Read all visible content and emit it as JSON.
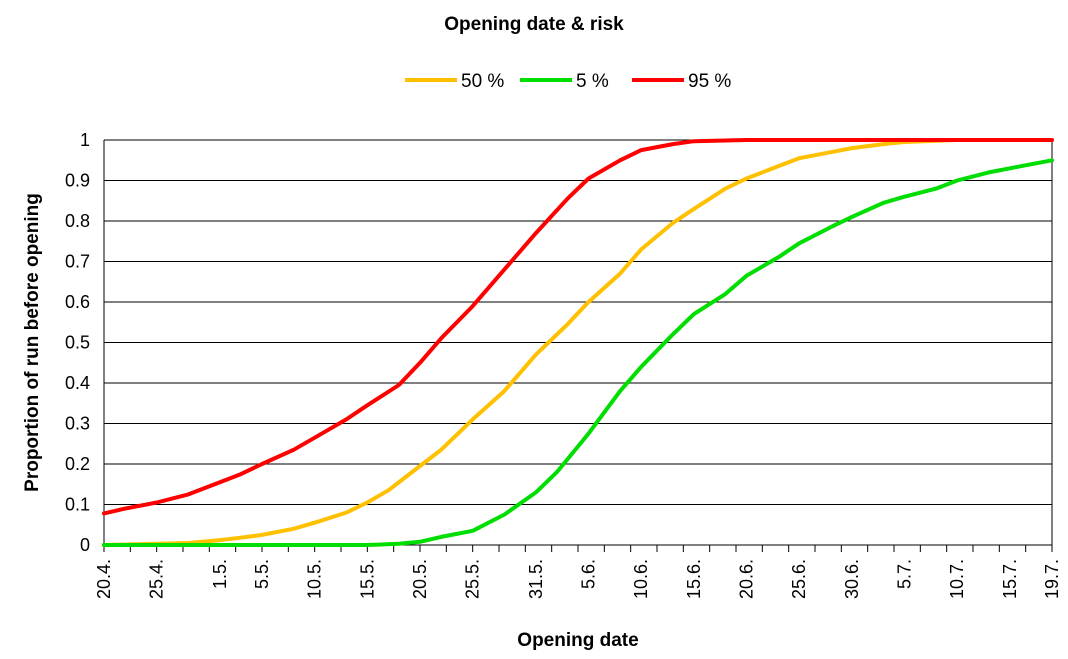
{
  "chart_data": {
    "type": "line",
    "title": "Opening date & risk",
    "xlabel": "Opening date",
    "ylabel": "Proportion of run before opening",
    "ylim": [
      0,
      1
    ],
    "yticks": [
      "0",
      "0.1",
      "0.2",
      "0.3",
      "0.4",
      "0.5",
      "0.6",
      "0.7",
      "0.8",
      "0.9",
      "1"
    ],
    "xlim": [
      "20.4.",
      "19.7."
    ],
    "xticks": [
      "20.4.",
      "25.4.",
      "1.5.",
      "5.5.",
      "10.5.",
      "15.5.",
      "20.5.",
      "25.5.",
      "31.5.",
      "5.6.",
      "10.6.",
      "15.6.",
      "20.6.",
      "25.6.",
      "30.6.",
      "5.7.",
      "10.7.",
      "15.7.",
      "19.7."
    ],
    "grid": "horizontal",
    "legend_position": "top",
    "series": [
      {
        "name": "50 %",
        "color": "#FFC000",
        "points": [
          [
            "20.4.",
            0
          ],
          [
            "25.4.",
            0.003
          ],
          [
            "28.4.",
            0.005
          ],
          [
            "1.5.",
            0.012
          ],
          [
            "3.5.",
            0.018
          ],
          [
            "5.5.",
            0.025
          ],
          [
            "8.5.",
            0.04
          ],
          [
            "10.5.",
            0.055
          ],
          [
            "13.5.",
            0.08
          ],
          [
            "15.5.",
            0.105
          ],
          [
            "17.5.",
            0.135
          ],
          [
            "20.5.",
            0.195
          ],
          [
            "22.5.",
            0.235
          ],
          [
            "25.5.",
            0.31
          ],
          [
            "28.5.",
            0.38
          ],
          [
            "31.5.",
            0.47
          ],
          [
            "3.6.",
            0.545
          ],
          [
            "5.6.",
            0.6
          ],
          [
            "8.6.",
            0.67
          ],
          [
            "10.6.",
            0.73
          ],
          [
            "13.6.",
            0.795
          ],
          [
            "15.6.",
            0.83
          ],
          [
            "18.6.",
            0.88
          ],
          [
            "20.6.",
            0.905
          ],
          [
            "23.6.",
            0.935
          ],
          [
            "25.6.",
            0.955
          ],
          [
            "28.6.",
            0.97
          ],
          [
            "30.6.",
            0.98
          ],
          [
            "3.7.",
            0.99
          ],
          [
            "5.7.",
            0.995
          ],
          [
            "10.7.",
            1
          ],
          [
            "15.7.",
            1
          ],
          [
            "19.7.",
            1
          ]
        ]
      },
      {
        "name": "5 %",
        "color": "#00DD00",
        "points": [
          [
            "20.4.",
            0
          ],
          [
            "1.5.",
            0
          ],
          [
            "10.5.",
            0
          ],
          [
            "15.5.",
            0
          ],
          [
            "18.5.",
            0.003
          ],
          [
            "20.5.",
            0.008
          ],
          [
            "22.5.",
            0.02
          ],
          [
            "25.5.",
            0.035
          ],
          [
            "28.5.",
            0.075
          ],
          [
            "31.5.",
            0.13
          ],
          [
            "2.6.",
            0.18
          ],
          [
            "5.6.",
            0.275
          ],
          [
            "8.6.",
            0.38
          ],
          [
            "10.6.",
            0.44
          ],
          [
            "13.6.",
            0.52
          ],
          [
            "15.6.",
            0.57
          ],
          [
            "18.6.",
            0.62
          ],
          [
            "20.6.",
            0.665
          ],
          [
            "23.6.",
            0.71
          ],
          [
            "25.6.",
            0.745
          ],
          [
            "28.6.",
            0.785
          ],
          [
            "30.6.",
            0.81
          ],
          [
            "3.7.",
            0.845
          ],
          [
            "5.7.",
            0.86
          ],
          [
            "8.7.",
            0.88
          ],
          [
            "10.7.",
            0.9
          ],
          [
            "13.7.",
            0.92
          ],
          [
            "15.7.",
            0.93
          ],
          [
            "19.7.",
            0.95
          ]
        ]
      },
      {
        "name": "95 %",
        "color": "#FF0000",
        "points": [
          [
            "20.4.",
            0.078
          ],
          [
            "22.4.",
            0.09
          ],
          [
            "25.4.",
            0.105
          ],
          [
            "28.4.",
            0.125
          ],
          [
            "1.5.",
            0.155
          ],
          [
            "3.5.",
            0.175
          ],
          [
            "5.5.",
            0.2
          ],
          [
            "8.5.",
            0.235
          ],
          [
            "10.5.",
            0.265
          ],
          [
            "13.5.",
            0.31
          ],
          [
            "15.5.",
            0.345
          ],
          [
            "18.5.",
            0.395
          ],
          [
            "20.5.",
            0.45
          ],
          [
            "22.5.",
            0.51
          ],
          [
            "25.5.",
            0.59
          ],
          [
            "28.5.",
            0.68
          ],
          [
            "31.5.",
            0.77
          ],
          [
            "3.6.",
            0.855
          ],
          [
            "5.6.",
            0.905
          ],
          [
            "8.6.",
            0.95
          ],
          [
            "10.6.",
            0.975
          ],
          [
            "13.6.",
            0.99
          ],
          [
            "15.6.",
            0.997
          ],
          [
            "20.6.",
            1
          ],
          [
            "25.6.",
            1
          ],
          [
            "30.6.",
            1
          ],
          [
            "10.7.",
            1
          ],
          [
            "19.7.",
            1
          ]
        ]
      }
    ]
  }
}
